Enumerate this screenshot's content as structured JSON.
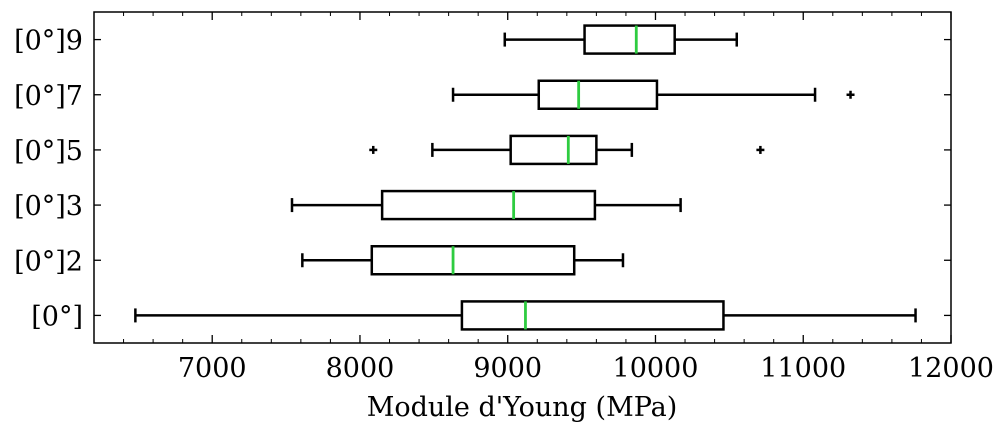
{
  "chart_data": {
    "type": "boxplot",
    "orientation": "horizontal",
    "xlabel": "Module d'Young (MPa)",
    "ylabel": "",
    "xlim": [
      6200,
      12000
    ],
    "x_ticks": [
      7000,
      8000,
      9000,
      10000,
      11000,
      12000
    ],
    "x_minor_step": 200,
    "grid": false,
    "median_color": "#2ecc40",
    "box_color": "#000000",
    "categories": [
      "[0°]",
      "[0°]2",
      "[0°]3",
      "[0°]5",
      "[0°]7",
      "[0°]9"
    ],
    "boxes": [
      {
        "label": "[0°]",
        "whisker_low": 6480,
        "q1": 8690,
        "median": 9120,
        "q3": 10460,
        "whisker_high": 11760,
        "outliers": []
      },
      {
        "label": "[0°]2",
        "whisker_low": 7610,
        "q1": 8080,
        "median": 8630,
        "q3": 9450,
        "whisker_high": 9780,
        "outliers": []
      },
      {
        "label": "[0°]3",
        "whisker_low": 7540,
        "q1": 8150,
        "median": 9040,
        "q3": 9590,
        "whisker_high": 10170,
        "outliers": []
      },
      {
        "label": "[0°]5",
        "whisker_low": 8490,
        "q1": 9020,
        "median": 9410,
        "q3": 9600,
        "whisker_high": 9840,
        "outliers": [
          8090,
          10710
        ]
      },
      {
        "label": "[0°]7",
        "whisker_low": 8630,
        "q1": 9210,
        "median": 9480,
        "q3": 10010,
        "whisker_high": 11080,
        "outliers": [
          11320
        ]
      },
      {
        "label": "[0°]9",
        "whisker_low": 8980,
        "q1": 9520,
        "median": 9870,
        "q3": 10130,
        "whisker_high": 10550,
        "outliers": []
      }
    ]
  }
}
